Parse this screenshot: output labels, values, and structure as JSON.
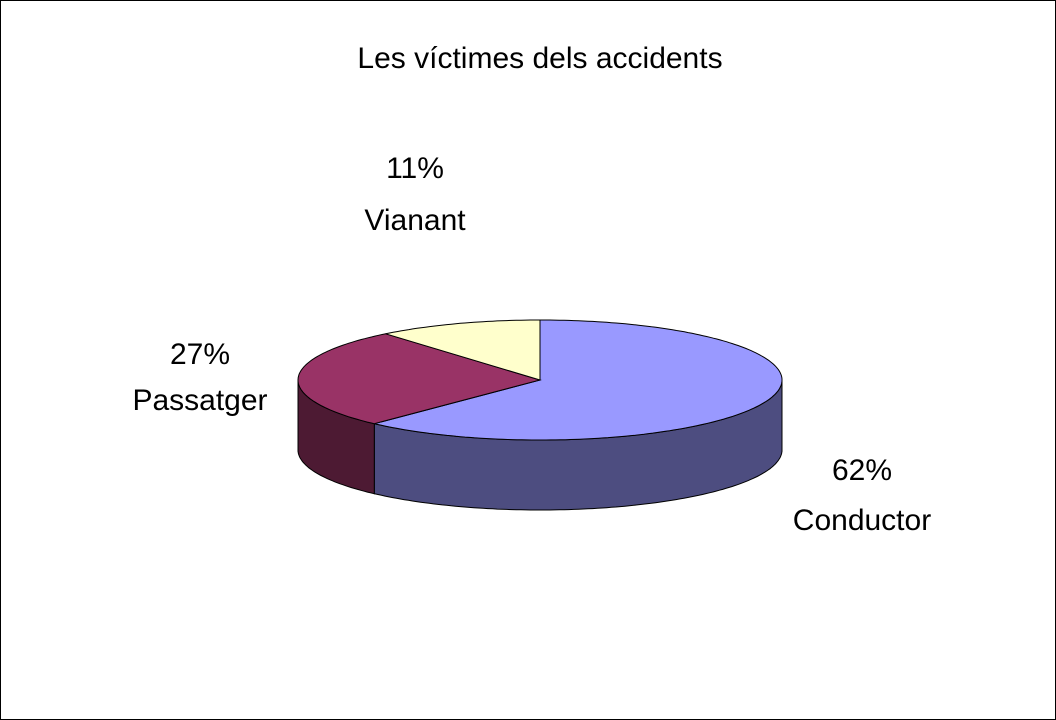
{
  "chart_data": {
    "type": "pie",
    "title": "Les víctimes dels accidents",
    "categories": [
      "Conductor",
      "Passatger",
      "Vianant"
    ],
    "values": [
      62,
      27,
      11
    ],
    "value_labels": [
      "62%",
      "27%",
      "11%"
    ],
    "colors": [
      "#9999ff",
      "#993366",
      "#ffffcc"
    ]
  }
}
